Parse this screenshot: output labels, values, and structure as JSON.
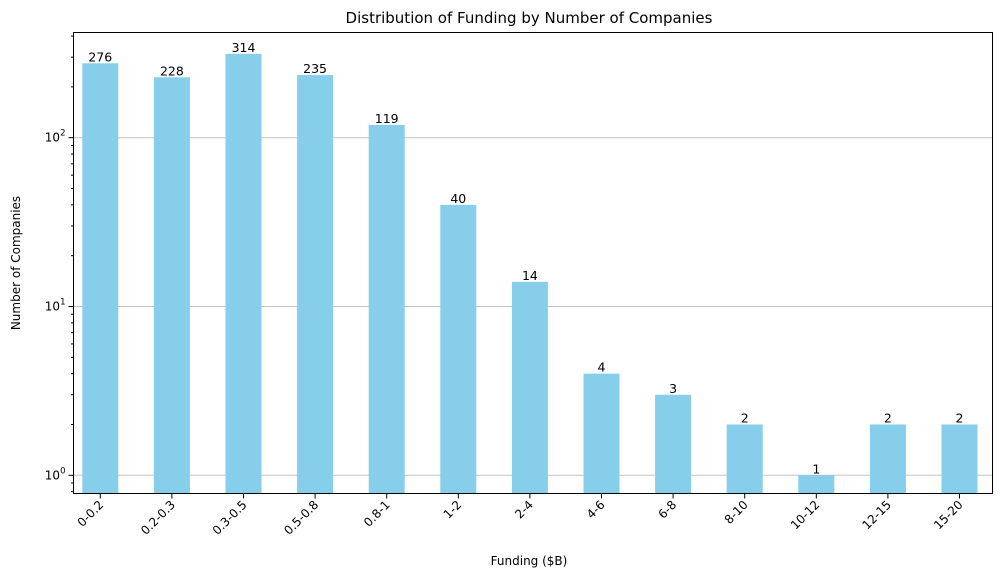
{
  "chart_data": {
    "type": "bar",
    "title": "Distribution of Funding by Number of Companies",
    "xlabel": "Funding ($B)",
    "ylabel": "Number of Companies",
    "yscale": "log",
    "ylim": [
      0.78,
      420
    ],
    "grid": "y-major",
    "legend": "none",
    "bar_color": "#87ceeb",
    "categories": [
      "0-0.2",
      "0.2-0.3",
      "0.3-0.5",
      "0.5-0.8",
      "0.8-1",
      "1-2",
      "2-4",
      "4-6",
      "6-8",
      "8-10",
      "10-12",
      "12-15",
      "15-20"
    ],
    "values": [
      276,
      228,
      314,
      235,
      119,
      40,
      14,
      4,
      3,
      2,
      1,
      2,
      2
    ],
    "yticks": [
      {
        "value": 1,
        "base": "10",
        "exp": "0"
      },
      {
        "value": 10,
        "base": "10",
        "exp": "1"
      },
      {
        "value": 100,
        "base": "10",
        "exp": "2"
      }
    ]
  }
}
